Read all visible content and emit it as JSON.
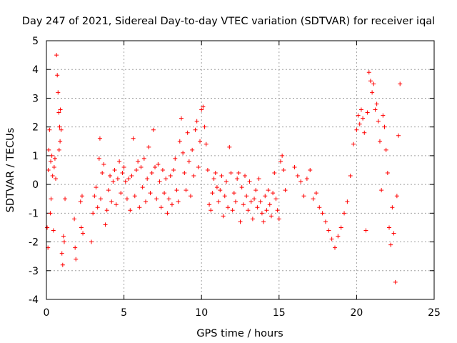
{
  "chart_data": {
    "type": "scatter",
    "title": "Day 247 of 2021, Sidereal Day-to-day VTEC variation (SDTVAR) for receiver iqal",
    "xlabel": "GPS time / hours",
    "ylabel": "SDTVAR / TECUs",
    "xlim": [
      0,
      25
    ],
    "ylim": [
      -4,
      5
    ],
    "xticks": [
      0,
      5,
      10,
      15,
      20,
      25
    ],
    "yticks": [
      -4,
      -3,
      -2,
      -1,
      0,
      1,
      2,
      3,
      4,
      5
    ],
    "grid": true,
    "marker": "+",
    "color": "#ff0000",
    "series": [
      {
        "name": "SDTVAR",
        "x": [
          0.05,
          0.1,
          0.12,
          0.15,
          0.2,
          0.25,
          0.28,
          0.3,
          0.35,
          0.4,
          0.45,
          0.5,
          0.55,
          0.6,
          0.65,
          0.7,
          0.75,
          0.8,
          0.82,
          0.85,
          0.88,
          0.9,
          0.95,
          1.0,
          1.05,
          1.1,
          1.15,
          1.2,
          1.8,
          1.85,
          1.9,
          2.2,
          2.25,
          2.3,
          2.35,
          2.9,
          3.0,
          3.1,
          3.2,
          3.3,
          3.4,
          3.45,
          3.5,
          3.6,
          3.7,
          3.8,
          3.9,
          4.0,
          4.1,
          4.2,
          4.3,
          4.4,
          4.5,
          4.6,
          4.7,
          4.8,
          4.9,
          5.0,
          5.1,
          5.2,
          5.3,
          5.4,
          5.5,
          5.6,
          5.7,
          5.8,
          5.9,
          6.0,
          6.1,
          6.2,
          6.3,
          6.4,
          6.5,
          6.6,
          6.7,
          6.8,
          6.9,
          7.0,
          7.1,
          7.2,
          7.3,
          7.4,
          7.5,
          7.6,
          7.7,
          7.8,
          7.9,
          8.0,
          8.1,
          8.2,
          8.3,
          8.4,
          8.5,
          8.6,
          8.7,
          8.8,
          8.9,
          9.0,
          9.1,
          9.2,
          9.3,
          9.4,
          9.5,
          9.6,
          9.7,
          9.8,
          9.9,
          10.0,
          10.1,
          10.2,
          10.3,
          10.4,
          10.5,
          10.6,
          10.7,
          10.8,
          10.9,
          11.0,
          11.1,
          11.2,
          11.3,
          11.4,
          11.5,
          11.6,
          11.7,
          11.8,
          11.9,
          12.0,
          12.1,
          12.2,
          12.3,
          12.4,
          12.5,
          12.6,
          12.7,
          12.8,
          12.9,
          13.0,
          13.1,
          13.2,
          13.3,
          13.4,
          13.5,
          13.6,
          13.7,
          13.8,
          13.9,
          14.0,
          14.1,
          14.2,
          14.3,
          14.4,
          14.5,
          14.6,
          14.7,
          14.8,
          14.9,
          15.0,
          15.1,
          15.2,
          15.3,
          15.4,
          16.0,
          16.2,
          16.4,
          16.6,
          16.8,
          17.0,
          17.2,
          17.4,
          17.6,
          17.8,
          18.0,
          18.2,
          18.4,
          18.6,
          18.8,
          19.0,
          19.2,
          19.4,
          19.6,
          19.8,
          20.0,
          20.1,
          20.2,
          20.3,
          20.4,
          20.5,
          20.6,
          20.7,
          20.8,
          20.9,
          21.0,
          21.1,
          21.2,
          21.3,
          21.4,
          21.5,
          21.6,
          21.7,
          21.8,
          21.9,
          22.0,
          22.1,
          22.2,
          22.3,
          22.4,
          22.5,
          22.6,
          22.7,
          22.8
        ],
        "y": [
          -1.5,
          -2.2,
          0.5,
          1.2,
          1.9,
          -1.0,
          0.8,
          -0.5,
          1.0,
          0.3,
          -1.6,
          0.6,
          0.9,
          0.2,
          4.5,
          3.8,
          3.2,
          2.5,
          1.2,
          2.0,
          1.5,
          2.6,
          1.9,
          -2.4,
          -2.8,
          -1.8,
          -2.0,
          -0.5,
          -1.2,
          -2.2,
          -2.6,
          -0.6,
          -1.5,
          -0.4,
          -1.7,
          -2.0,
          -1.0,
          -0.4,
          -0.1,
          -0.8,
          0.9,
          1.6,
          -0.5,
          0.4,
          0.7,
          -1.4,
          -0.9,
          -0.2,
          0.3,
          -0.6,
          0.1,
          0.5,
          -0.7,
          0.2,
          0.8,
          -0.3,
          0.4,
          0.6,
          0.1,
          -0.5,
          0.2,
          -0.9,
          0.3,
          1.6,
          -0.4,
          0.5,
          0.8,
          -0.8,
          0.6,
          -0.1,
          0.9,
          -0.6,
          0.2,
          1.3,
          -0.3,
          0.4,
          1.9,
          0.6,
          -0.5,
          0.7,
          0.1,
          -0.8,
          0.5,
          -0.3,
          0.2,
          -1.0,
          -0.5,
          0.3,
          -0.7,
          0.5,
          0.9,
          -0.2,
          -0.6,
          1.5,
          2.3,
          1.1,
          0.4,
          -0.2,
          1.8,
          0.8,
          -0.4,
          1.2,
          0.3,
          1.9,
          2.2,
          0.6,
          1.5,
          2.6,
          2.7,
          2.0,
          1.4,
          0.5,
          -0.7,
          -0.9,
          -0.3,
          0.2,
          0.4,
          -0.1,
          -0.6,
          -0.2,
          0.3,
          -1.1,
          -0.4,
          0.1,
          -0.8,
          1.3,
          0.4,
          -0.9,
          -0.3,
          -0.6,
          0.2,
          0.4,
          -1.3,
          -0.1,
          -0.7,
          0.3,
          -0.4,
          -0.9,
          0.1,
          -0.6,
          -1.2,
          -0.5,
          -0.2,
          -0.8,
          0.2,
          -0.6,
          -1.0,
          -1.3,
          -0.4,
          -0.9,
          -0.2,
          -0.7,
          -1.1,
          -0.3,
          0.4,
          -0.5,
          -0.9,
          -1.2,
          0.8,
          1.0,
          0.5,
          -0.2,
          0.6,
          0.3,
          0.1,
          -0.4,
          0.2,
          0.5,
          -0.5,
          -0.3,
          -0.8,
          -1.0,
          -1.3,
          -1.6,
          -1.9,
          -2.2,
          -1.8,
          -1.5,
          -1.0,
          -0.6,
          0.3,
          1.4,
          1.9,
          2.4,
          2.1,
          2.6,
          2.3,
          1.8,
          -1.6,
          2.5,
          3.9,
          3.6,
          3.2,
          3.5,
          2.6,
          2.8,
          2.2,
          1.5,
          -0.2,
          2.4,
          2.0,
          1.2,
          0.4,
          -1.5,
          -2.1,
          -0.8,
          -1.7,
          -3.4,
          -0.4,
          1.7,
          3.5
        ]
      }
    ]
  }
}
